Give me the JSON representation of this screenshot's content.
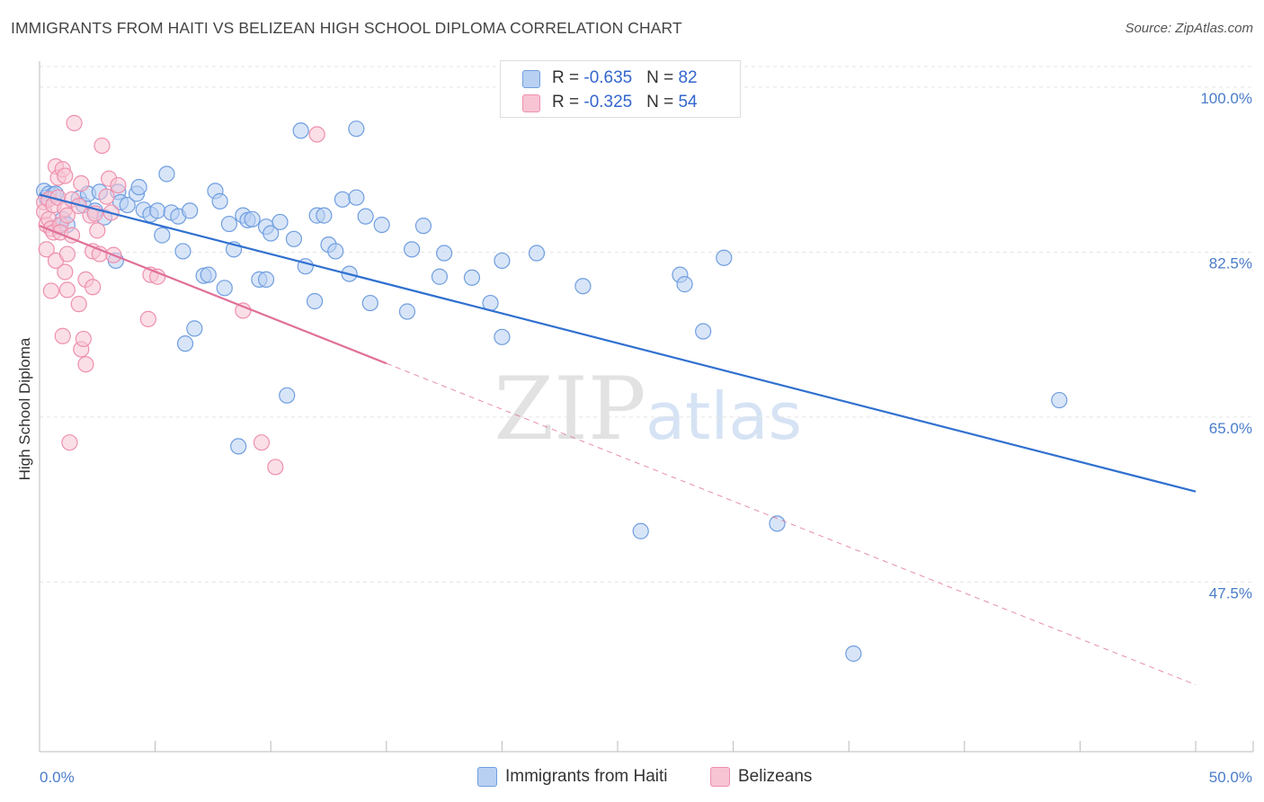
{
  "header": {
    "title": "IMMIGRANTS FROM HAITI VS BELIZEAN HIGH SCHOOL DIPLOMA CORRELATION CHART",
    "source": "Source: ZipAtlas.com"
  },
  "legend": {
    "rows": [
      {
        "r_label": "R = ",
        "r_value": "-0.635",
        "n_label": "N = ",
        "n_value": "82"
      },
      {
        "r_label": "R = ",
        "r_value": "-0.325",
        "n_label": "N = ",
        "n_value": "54"
      }
    ],
    "bottom": [
      "Immigrants from Haiti",
      "Belizeans"
    ]
  },
  "watermark": {
    "zip": "ZIP",
    "atlas": "atlas"
  },
  "colors": {
    "blue_fill": "#b8d0f2",
    "blue_stroke": "#6f9ee0",
    "blue_line": "#3070d0",
    "pink_fill": "#f7c4d4",
    "pink_stroke": "#ee90ad",
    "pink_line": "#e07098",
    "tick_label": "#4a7cc9",
    "grid": "#e4e4e4"
  },
  "chart_data": {
    "type": "scatter",
    "title": "IMMIGRANTS FROM HAITI VS BELIZEAN HIGH SCHOOL DIPLOMA CORRELATION CHART",
    "xlabel": "",
    "ylabel": "High School Diploma",
    "xlim": [
      0,
      50
    ],
    "ylim": [
      29.5,
      102.2
    ],
    "x_tick_labels": [
      "0.0%",
      "50.0%"
    ],
    "y_ticks": [
      100.0,
      82.5,
      65.0,
      47.5
    ],
    "y_tick_labels": [
      "100.0%",
      "82.5%",
      "65.0%",
      "47.5%"
    ],
    "series": [
      {
        "name": "Immigrants from Haiti",
        "color": "blue",
        "R": -0.635,
        "N": 82,
        "trend": {
          "x": [
            0,
            50
          ],
          "y": [
            88.6,
            57.1
          ]
        },
        "points": [
          [
            0.2,
            89.0
          ],
          [
            0.3,
            88.3
          ],
          [
            0.4,
            88.7
          ],
          [
            0.6,
            88.6
          ],
          [
            0.7,
            88.7
          ],
          [
            0.8,
            85.2
          ],
          [
            1.0,
            86.0
          ],
          [
            1.2,
            85.4
          ],
          [
            1.7,
            88.2
          ],
          [
            1.9,
            87.5
          ],
          [
            2.1,
            88.7
          ],
          [
            2.4,
            86.9
          ],
          [
            2.6,
            88.9
          ],
          [
            2.8,
            86.2
          ],
          [
            3.4,
            88.9
          ],
          [
            3.5,
            87.8
          ],
          [
            3.8,
            87.5
          ],
          [
            3.3,
            81.6
          ],
          [
            4.2,
            88.7
          ],
          [
            4.3,
            89.4
          ],
          [
            4.5,
            87.0
          ],
          [
            4.8,
            86.5
          ],
          [
            5.1,
            86.9
          ],
          [
            5.3,
            84.3
          ],
          [
            5.5,
            90.8
          ],
          [
            5.7,
            86.7
          ],
          [
            6.0,
            86.3
          ],
          [
            6.2,
            82.6
          ],
          [
            6.3,
            72.8
          ],
          [
            6.5,
            86.9
          ],
          [
            6.7,
            74.4
          ],
          [
            7.1,
            80.0
          ],
          [
            7.3,
            80.1
          ],
          [
            7.6,
            89.0
          ],
          [
            7.8,
            87.9
          ],
          [
            8.0,
            78.7
          ],
          [
            8.2,
            85.5
          ],
          [
            8.4,
            82.8
          ],
          [
            8.6,
            61.9
          ],
          [
            8.8,
            86.4
          ],
          [
            9.0,
            85.9
          ],
          [
            9.2,
            86.0
          ],
          [
            9.5,
            79.6
          ],
          [
            9.8,
            79.6
          ],
          [
            9.8,
            85.2
          ],
          [
            10.0,
            84.5
          ],
          [
            10.4,
            85.7
          ],
          [
            10.7,
            67.3
          ],
          [
            11.0,
            83.9
          ],
          [
            11.3,
            95.4
          ],
          [
            11.5,
            81.0
          ],
          [
            11.9,
            77.3
          ],
          [
            12.0,
            86.4
          ],
          [
            12.3,
            86.4
          ],
          [
            12.5,
            83.3
          ],
          [
            12.8,
            82.6
          ],
          [
            13.1,
            88.1
          ],
          [
            13.4,
            80.2
          ],
          [
            13.7,
            88.3
          ],
          [
            13.7,
            95.6
          ],
          [
            14.1,
            86.3
          ],
          [
            14.3,
            77.1
          ],
          [
            14.8,
            85.4
          ],
          [
            15.9,
            76.2
          ],
          [
            16.1,
            82.8
          ],
          [
            16.6,
            85.3
          ],
          [
            17.3,
            79.9
          ],
          [
            17.5,
            82.4
          ],
          [
            18.7,
            79.8
          ],
          [
            19.5,
            77.1
          ],
          [
            20.0,
            73.5
          ],
          [
            20.0,
            81.6
          ],
          [
            21.5,
            82.4
          ],
          [
            23.5,
            78.9
          ],
          [
            26.0,
            52.9
          ],
          [
            27.7,
            80.1
          ],
          [
            27.9,
            79.1
          ],
          [
            28.7,
            74.1
          ],
          [
            29.6,
            81.9
          ],
          [
            31.9,
            53.7
          ],
          [
            35.2,
            39.9
          ],
          [
            44.1,
            66.8
          ]
        ]
      },
      {
        "name": "Belizeans",
        "color": "pink",
        "R": -0.325,
        "N": 54,
        "trend": {
          "x": [
            0,
            15
          ],
          "y": [
            85.3,
            70.7
          ],
          "dashed_extension": {
            "x": [
              15,
              50
            ],
            "y": [
              70.7,
              36.6
            ]
          }
        },
        "points": [
          [
            0.2,
            87.8
          ],
          [
            0.2,
            86.8
          ],
          [
            0.3,
            85.4
          ],
          [
            0.3,
            82.8
          ],
          [
            0.4,
            88.1
          ],
          [
            0.4,
            86.0
          ],
          [
            0.5,
            85.0
          ],
          [
            0.5,
            78.4
          ],
          [
            0.6,
            87.5
          ],
          [
            0.6,
            84.6
          ],
          [
            0.7,
            91.6
          ],
          [
            0.7,
            81.6
          ],
          [
            0.8,
            90.4
          ],
          [
            0.8,
            88.3
          ],
          [
            0.9,
            85.4
          ],
          [
            0.9,
            84.6
          ],
          [
            1.0,
            91.3
          ],
          [
            1.0,
            73.6
          ],
          [
            1.1,
            90.6
          ],
          [
            1.1,
            87.1
          ],
          [
            1.1,
            80.4
          ],
          [
            1.2,
            86.4
          ],
          [
            1.2,
            78.5
          ],
          [
            1.2,
            82.3
          ],
          [
            1.3,
            62.3
          ],
          [
            1.4,
            88.1
          ],
          [
            1.4,
            84.3
          ],
          [
            1.5,
            96.2
          ],
          [
            1.7,
            87.4
          ],
          [
            1.7,
            77.0
          ],
          [
            1.8,
            89.8
          ],
          [
            1.8,
            72.2
          ],
          [
            1.9,
            73.3
          ],
          [
            2.0,
            70.6
          ],
          [
            2.0,
            79.6
          ],
          [
            2.2,
            86.4
          ],
          [
            2.3,
            82.6
          ],
          [
            2.3,
            78.8
          ],
          [
            2.5,
            84.8
          ],
          [
            2.6,
            82.3
          ],
          [
            2.7,
            93.8
          ],
          [
            2.9,
            88.4
          ],
          [
            3.0,
            90.3
          ],
          [
            3.1,
            86.7
          ],
          [
            3.2,
            82.2
          ],
          [
            4.7,
            75.4
          ],
          [
            4.8,
            80.1
          ],
          [
            5.1,
            79.9
          ],
          [
            8.8,
            76.3
          ],
          [
            9.6,
            62.3
          ],
          [
            10.2,
            59.7
          ],
          [
            12.0,
            95.0
          ],
          [
            2.4,
            86.6
          ],
          [
            3.4,
            89.6
          ]
        ]
      }
    ]
  }
}
